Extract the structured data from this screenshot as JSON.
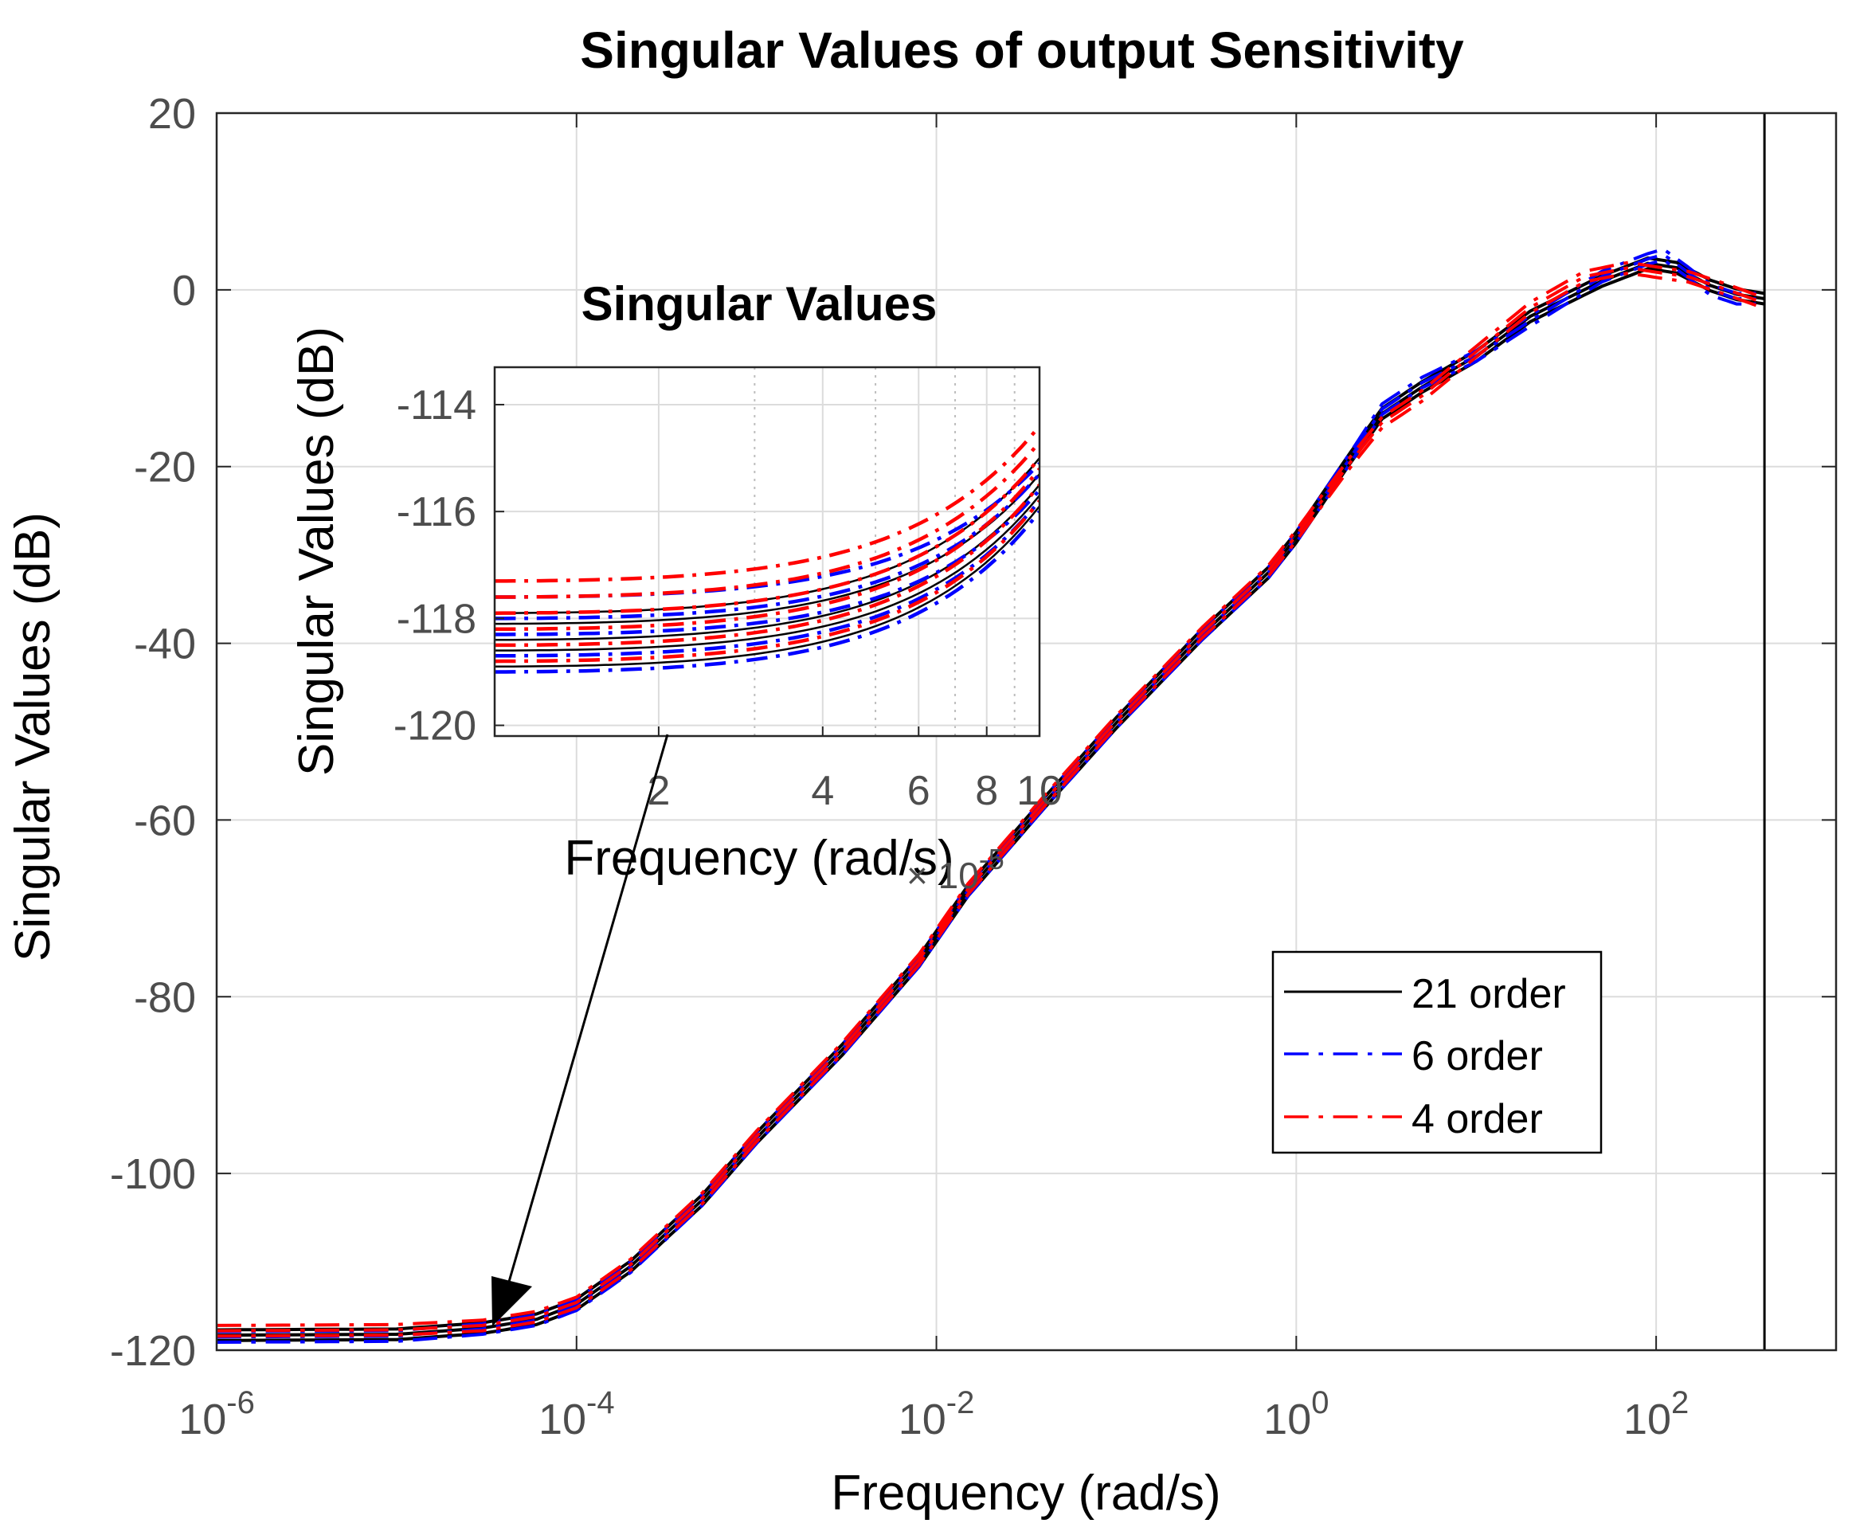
{
  "chart_data": [
    {
      "id": "main",
      "type": "line",
      "title": "Singular Values of output Sensitivity",
      "xlabel": "Frequency (rad/s)",
      "ylabel": "Singular Values (dB)",
      "xscale": "log",
      "xlim": [
        1e-06,
        1000
      ],
      "ylim": [
        -120,
        20
      ],
      "grid": true,
      "xticks": [
        {
          "value": 1e-06,
          "base": "10",
          "exp": "-6"
        },
        {
          "value": 0.0001,
          "base": "10",
          "exp": "-4"
        },
        {
          "value": 0.01,
          "base": "10",
          "exp": "-2"
        },
        {
          "value": 1,
          "base": "10",
          "exp": "0"
        },
        {
          "value": 100,
          "base": "10",
          "exp": "2"
        }
      ],
      "yticks": [
        {
          "value": 20,
          "label": "20"
        },
        {
          "value": 0,
          "label": "0"
        },
        {
          "value": -20,
          "label": "-20"
        },
        {
          "value": -40,
          "label": "-40"
        },
        {
          "value": -60,
          "label": "-60"
        },
        {
          "value": -80,
          "label": "-80"
        },
        {
          "value": -100,
          "label": "-100"
        },
        {
          "value": -120,
          "label": "-120"
        }
      ],
      "legend": {
        "position": "lower-right",
        "entries": [
          {
            "label": "21 order",
            "color": "#000000",
            "style": "solid"
          },
          {
            "label": "6 order",
            "color": "#0000ff",
            "style": "dashdot"
          },
          {
            "label": "4 order",
            "color": "#ff0000",
            "style": "dashdot"
          }
        ]
      },
      "series": [
        {
          "name": "21 order",
          "color": "#000000",
          "style": "solid",
          "points": [
            [
              1e-06,
              -118.3
            ],
            [
              1e-05,
              -118.2
            ],
            [
              3e-05,
              -117.5
            ],
            [
              6e-05,
              -116.5
            ],
            [
              0.0001,
              -114.8
            ],
            [
              0.0002,
              -110.5
            ],
            [
              0.0005,
              -103
            ],
            [
              0.001,
              -96
            ],
            [
              0.003,
              -86
            ],
            [
              0.008,
              -76
            ],
            [
              0.015,
              -68
            ],
            [
              0.04,
              -58
            ],
            [
              0.1,
              -49
            ],
            [
              0.3,
              -39
            ],
            [
              0.7,
              -32
            ],
            [
              1,
              -28
            ],
            [
              2,
              -19
            ],
            [
              3,
              -14
            ],
            [
              5,
              -11
            ],
            [
              10,
              -7.5
            ],
            [
              20,
              -3
            ],
            [
              50,
              1
            ],
            [
              90,
              3
            ],
            [
              130,
              2.5
            ],
            [
              200,
              0.5
            ],
            [
              280,
              -0.5
            ],
            [
              400,
              -1
            ]
          ]
        },
        {
          "name": "6 order",
          "color": "#0000ff",
          "style": "dashdot",
          "points": [
            [
              1e-06,
              -118.5
            ],
            [
              1e-05,
              -118.4
            ],
            [
              3e-05,
              -117.6
            ],
            [
              6e-05,
              -116.6
            ],
            [
              0.0001,
              -114.9
            ],
            [
              0.0002,
              -110.6
            ],
            [
              0.0005,
              -103
            ],
            [
              0.001,
              -96
            ],
            [
              0.003,
              -86
            ],
            [
              0.008,
              -76
            ],
            [
              0.015,
              -68
            ],
            [
              0.04,
              -58
            ],
            [
              0.1,
              -49
            ],
            [
              0.3,
              -39
            ],
            [
              0.7,
              -32
            ],
            [
              1,
              -28
            ],
            [
              2,
              -19
            ],
            [
              3,
              -13.5
            ],
            [
              5,
              -10.5
            ],
            [
              10,
              -7.5
            ],
            [
              20,
              -3.5
            ],
            [
              50,
              1.5
            ],
            [
              90,
              3.5
            ],
            [
              110,
              4
            ],
            [
              150,
              2
            ],
            [
              200,
              0
            ],
            [
              280,
              -1
            ],
            [
              400,
              -1
            ]
          ]
        },
        {
          "name": "4 order",
          "color": "#ff0000",
          "style": "dashdot",
          "points": [
            [
              1e-06,
              -117.8
            ],
            [
              1e-05,
              -117.7
            ],
            [
              3e-05,
              -117.2
            ],
            [
              6e-05,
              -116.2
            ],
            [
              0.0001,
              -114.6
            ],
            [
              0.0002,
              -110.3
            ],
            [
              0.0005,
              -102.8
            ],
            [
              0.001,
              -95.8
            ],
            [
              0.003,
              -85.8
            ],
            [
              0.008,
              -75.8
            ],
            [
              0.015,
              -67.8
            ],
            [
              0.04,
              -57.8
            ],
            [
              0.1,
              -48.8
            ],
            [
              0.3,
              -38.8
            ],
            [
              0.7,
              -31.8
            ],
            [
              1,
              -27.8
            ],
            [
              2,
              -19.5
            ],
            [
              3,
              -15
            ],
            [
              5,
              -12
            ],
            [
              10,
              -7
            ],
            [
              20,
              -2
            ],
            [
              40,
              1.5
            ],
            [
              70,
              2.5
            ],
            [
              100,
              2
            ],
            [
              150,
              1.5
            ],
            [
              250,
              0
            ],
            [
              400,
              -1.5
            ]
          ]
        }
      ],
      "vertical_line": {
        "x": 400,
        "color": "#000000"
      }
    },
    {
      "id": "inset",
      "type": "line",
      "title": "Singular Values",
      "xlabel": "Frequency (rad/s)",
      "ylabel": "Singular Values (dB)",
      "xscale": "log",
      "xlim": [
        1e-05,
        0.0001
      ],
      "ylim": [
        -120.2,
        -113.3
      ],
      "x_exponent": {
        "base": "× 10",
        "exp": "-5"
      },
      "grid": true,
      "xticks": [
        {
          "value": 2e-05,
          "label": "2"
        },
        {
          "value": 4e-05,
          "label": "4"
        },
        {
          "value": 6e-05,
          "label": "6"
        },
        {
          "value": 8e-05,
          "label": "8"
        },
        {
          "value": 0.0001,
          "label": "10"
        }
      ],
      "yticks": [
        {
          "value": -114,
          "label": "-114"
        },
        {
          "value": -116,
          "label": "-116"
        },
        {
          "value": -118,
          "label": "-118"
        },
        {
          "value": -120,
          "label": "-120"
        }
      ],
      "series": [
        {
          "name": "21 order",
          "color": "#000000",
          "style": "solid",
          "start_values": [
            -118.9,
            -118.6,
            -118.4,
            -118.1,
            -117.9
          ],
          "end_values": [
            -115.9,
            -115.7,
            -115.5,
            -115.3,
            -115.0
          ]
        },
        {
          "name": "6 order",
          "color": "#0000ff",
          "style": "dashdot",
          "start_values": [
            -119.0,
            -118.7,
            -118.3,
            -118.0,
            -117.6
          ],
          "end_values": [
            -116.0,
            -115.8,
            -115.6,
            -115.3,
            -115.1
          ]
        },
        {
          "name": "4 order",
          "color": "#ff0000",
          "style": "dashdot",
          "start_values": [
            -118.8,
            -118.5,
            -118.2,
            -117.9,
            -117.6,
            -117.3
          ],
          "end_values": [
            -115.8,
            -115.5,
            -115.2,
            -115.0,
            -114.7,
            -114.4
          ]
        }
      ],
      "annotation": {
        "type": "arrow",
        "from": "inset",
        "to_x": 3e-05,
        "to_y": -117.3
      }
    }
  ]
}
